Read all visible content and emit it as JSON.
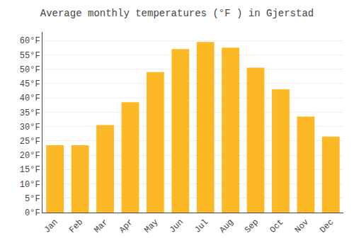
{
  "chart_data": {
    "type": "bar",
    "title": "Average monthly temperatures (°F ) in Gjerstad",
    "categories": [
      "Jan",
      "Feb",
      "Mar",
      "Apr",
      "May",
      "Jun",
      "Jul",
      "Aug",
      "Sep",
      "Oct",
      "Nov",
      "Dec"
    ],
    "values": [
      23.5,
      23.5,
      30.5,
      38.5,
      49.0,
      57.0,
      59.5,
      57.5,
      50.5,
      43.0,
      33.5,
      26.5
    ],
    "color": "#FDB825",
    "ylim": [
      0,
      63
    ],
    "yticks": [
      {
        "value": 0,
        "label": "0°F"
      },
      {
        "value": 5,
        "label": "5°F"
      },
      {
        "value": 10,
        "label": "10°F"
      },
      {
        "value": 15,
        "label": "15°F"
      },
      {
        "value": 20,
        "label": "20°F"
      },
      {
        "value": 25,
        "label": "25°F"
      },
      {
        "value": 30,
        "label": "30°F"
      },
      {
        "value": 35,
        "label": "35°F"
      },
      {
        "value": 40,
        "label": "40°F"
      },
      {
        "value": 45,
        "label": "45°F"
      },
      {
        "value": 50,
        "label": "50°F"
      },
      {
        "value": 55,
        "label": "55°F"
      },
      {
        "value": 60,
        "label": "60°F"
      }
    ],
    "grid": true
  }
}
